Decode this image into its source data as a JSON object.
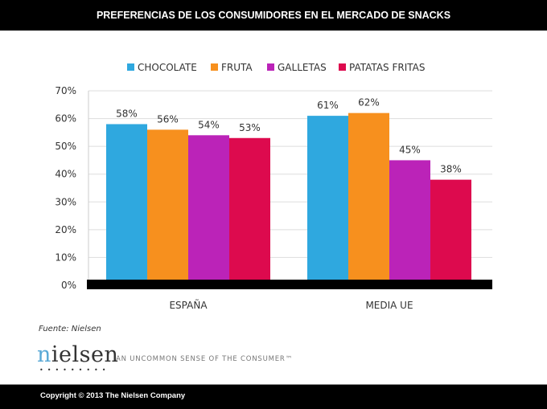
{
  "header": {
    "title": "PREFERENCIAS DE LOS CONSUMIDORES EN EL MERCADO DE SNACKS"
  },
  "chart_data": {
    "type": "bar",
    "title": "PREFERENCIAS DE LOS CONSUMIDORES EN EL MERCADO DE SNACKS",
    "categories": [
      "ESPAÑA",
      "MEDIA UE"
    ],
    "series": [
      {
        "name": "CHOCOLATE",
        "color": "#2fa8df",
        "values": [
          58,
          61
        ],
        "labels": [
          "58%",
          "61%"
        ]
      },
      {
        "name": "FRUTA",
        "color": "#f7901e",
        "values": [
          56,
          62
        ],
        "labels": [
          "56%",
          "62%"
        ]
      },
      {
        "name": "GALLETAS",
        "color": "#bb23b8",
        "values": [
          54,
          45
        ],
        "labels": [
          "54%",
          "45%"
        ]
      },
      {
        "name": "PATATAS FRITAS",
        "color": "#dd0a4e",
        "values": [
          53,
          38
        ],
        "labels": [
          "53%",
          "38%"
        ]
      }
    ],
    "ylim": [
      0,
      70
    ],
    "yticks": [
      "0%",
      "10%",
      "20%",
      "30%",
      "40%",
      "50%",
      "60%",
      "70%"
    ],
    "grid": true,
    "legend": "top"
  },
  "source": "Fuente: Nielsen",
  "logo": {
    "text": "nielsen",
    "tagline": "AN UNCOMMON SENSE OF THE CONSUMER™"
  },
  "footer": {
    "copyright": "Copyright © 2013 The Nielsen Company"
  }
}
